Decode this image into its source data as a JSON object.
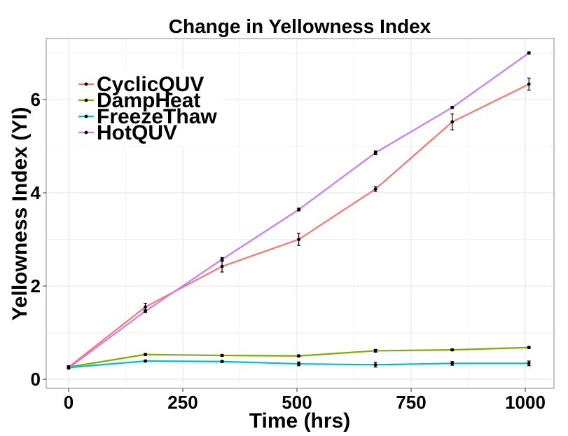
{
  "chart_data": {
    "type": "line",
    "title": "Change in Yellowness Index",
    "xlabel": "Time (hrs)",
    "ylabel": "Yellowness Index (YI)",
    "xlim": [
      -30,
      1040
    ],
    "ylim": [
      -0.1,
      7.25
    ],
    "xticks": [
      0,
      250,
      500,
      750,
      1000
    ],
    "yticks": [
      0,
      2,
      4,
      6
    ],
    "grid": true,
    "legend_position": "top-left",
    "series": [
      {
        "name": "CyclicQUV",
        "color": "#F8766D",
        "x": [
          0,
          168,
          336,
          504,
          672,
          840,
          1008
        ],
        "y": [
          0.26,
          1.55,
          2.42,
          3.0,
          4.08,
          5.52,
          6.33
        ],
        "err": [
          0.03,
          0.08,
          0.12,
          0.13,
          0.05,
          0.17,
          0.13
        ]
      },
      {
        "name": "DampHeat",
        "color": "#7CAE00",
        "x": [
          0,
          168,
          336,
          504,
          672,
          840,
          1008
        ],
        "y": [
          0.26,
          0.53,
          0.51,
          0.5,
          0.61,
          0.63,
          0.68
        ],
        "err": [
          0.02,
          0.02,
          0.02,
          0.02,
          0.03,
          0.02,
          0.02
        ]
      },
      {
        "name": "FreezeThaw",
        "color": "#00BFC4",
        "x": [
          0,
          168,
          336,
          504,
          672,
          840,
          1008
        ],
        "y": [
          0.25,
          0.39,
          0.38,
          0.33,
          0.31,
          0.34,
          0.34
        ],
        "err": [
          0.02,
          0.02,
          0.02,
          0.04,
          0.05,
          0.04,
          0.05
        ]
      },
      {
        "name": "HotQUV",
        "color": "#C77CFF",
        "x": [
          0,
          168,
          336,
          504,
          672,
          840,
          1008
        ],
        "y": [
          0.24,
          1.46,
          2.57,
          3.64,
          4.86,
          5.83,
          7.0
        ],
        "err": [
          0.02,
          0.03,
          0.04,
          0.03,
          0.04,
          0.02,
          0.02
        ]
      }
    ]
  }
}
